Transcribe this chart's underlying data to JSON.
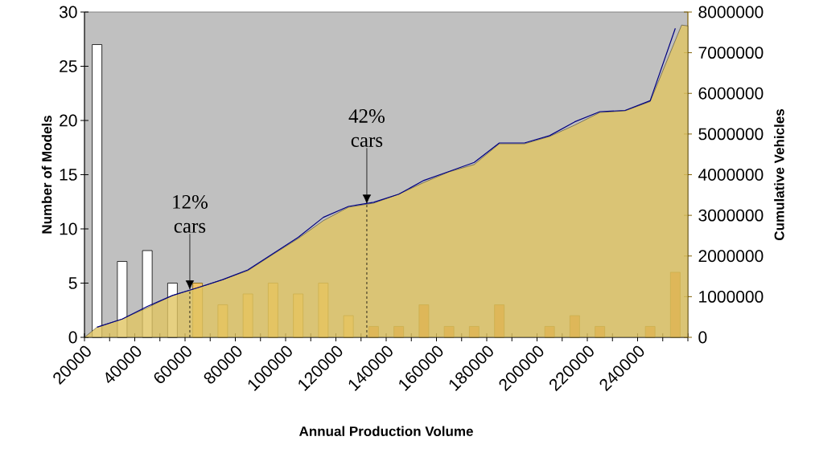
{
  "chart_data": {
    "type": "bar",
    "xlabel": "Annual Production Volume",
    "ylabel": "Number of Models",
    "y2label": "Cumulative Vehicles",
    "xlim": [
      20000,
      260000
    ],
    "xticks": [
      20000,
      {
        "value": 30000,
        "label": null
      },
      40000,
      {
        "value": 50000,
        "label": null
      },
      60000,
      {
        "value": 70000,
        "label": null
      },
      80000,
      {
        "value": 90000,
        "label": null
      },
      100000,
      {
        "value": 110000,
        "label": null
      },
      120000,
      {
        "value": 130000,
        "label": null
      },
      140000,
      {
        "value": 150000,
        "label": null
      },
      160000,
      {
        "value": 170000,
        "label": null
      },
      180000,
      {
        "value": 190000,
        "label": null
      },
      200000,
      {
        "value": 210000,
        "label": null
      },
      220000,
      {
        "value": 230000,
        "label": null
      },
      240000,
      {
        "value": 250000,
        "label": null
      },
      {
        "value": 260000,
        "label": null
      }
    ],
    "ylim": [
      0,
      30
    ],
    "yticks": [
      0,
      5,
      10,
      15,
      20,
      25,
      30
    ],
    "y2lim": [
      0,
      8000000
    ],
    "y2ticks": [
      0,
      1000000,
      2000000,
      3000000,
      4000000,
      5000000,
      6000000,
      7000000,
      8000000
    ],
    "series": [
      {
        "type": "area",
        "axis": "y2",
        "color": "#e0c462",
        "x": [
          20000,
          25000,
          35000,
          45000,
          55000,
          65000,
          75000,
          85000,
          95000,
          105000,
          115000,
          125000,
          135000,
          145000,
          155000,
          165000,
          175000,
          185000,
          195000,
          205000,
          215000,
          225000,
          235000,
          245000,
          257500,
          260000
        ],
        "values": [
          0,
          250000,
          450000,
          730000,
          1030000,
          1220000,
          1420000,
          1640000,
          2040000,
          2430000,
          2870000,
          3200000,
          3300000,
          3520000,
          3810000,
          4070000,
          4250000,
          4760000,
          4760000,
          4940000,
          5220000,
          5530000,
          5570000,
          5800000,
          7680000,
          7660000
        ]
      },
      {
        "type": "line",
        "axis": "y2",
        "color": "#000080",
        "x": [
          25000,
          35000,
          45000,
          55000,
          65000,
          75000,
          85000,
          95000,
          105000,
          115000,
          125000,
          135000,
          145000,
          155000,
          165000,
          175000,
          185000,
          195000,
          205000,
          215000,
          225000,
          235000,
          245000,
          255000
        ],
        "values": [
          250000,
          450000,
          760000,
          1030000,
          1220000,
          1420000,
          1660000,
          2060000,
          2460000,
          2950000,
          3220000,
          3320000,
          3520000,
          3860000,
          4080000,
          4300000,
          4780000,
          4780000,
          4960000,
          5300000,
          5550000,
          5580000,
          5820000,
          7600000
        ]
      },
      {
        "color": "#ffffff",
        "x": [
          25000,
          35000,
          45000,
          55000
        ],
        "values": [
          27,
          7,
          8,
          5
        ]
      },
      {
        "color": "#f2c46a",
        "x": [
          65000,
          75000,
          85000,
          95000,
          105000,
          115000,
          125000
        ],
        "values": [
          5,
          3,
          4,
          5,
          4,
          5,
          2
        ]
      },
      {
        "color": "#d4843a",
        "x": [
          135000,
          145000,
          155000,
          165000,
          175000,
          185000,
          195000,
          205000,
          215000,
          225000,
          235000,
          245000,
          255000
        ],
        "values": [
          1,
          1,
          3,
          1,
          1,
          3,
          null,
          1,
          2,
          1,
          null,
          1,
          6
        ]
      }
    ],
    "ref_lines": [
      {
        "axis": "x",
        "value": 61900,
        "label": "12% cars",
        "line_style": "dashed"
      },
      {
        "axis": "x",
        "value": 132300,
        "label": "42% cars",
        "line_style": "dashed"
      }
    ]
  }
}
